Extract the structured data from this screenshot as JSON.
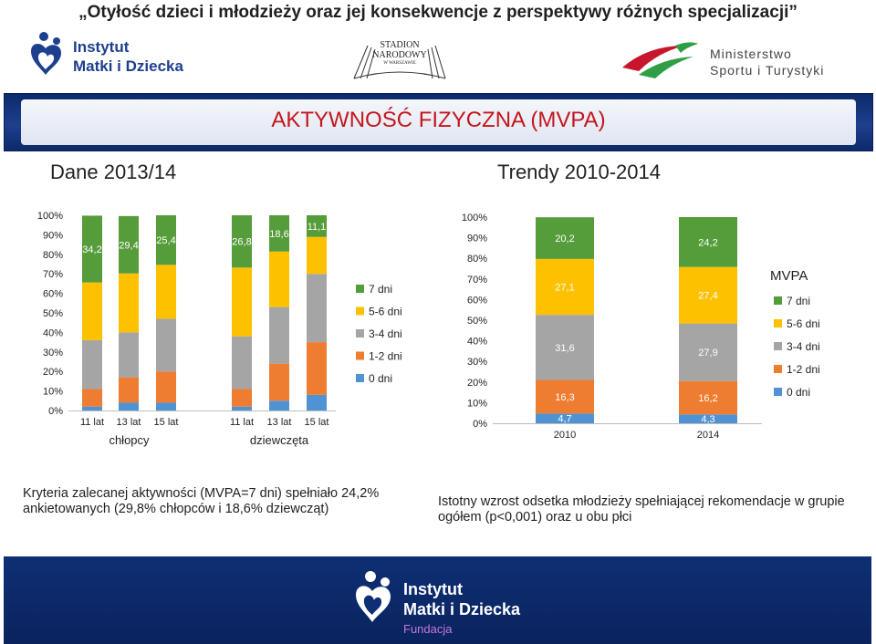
{
  "header": {
    "title": "„Otyłość dzieci i młodzieży oraz jej konsekwencje z perspektywy różnych specjalizacji”",
    "logo_imid": {
      "line1": "Instytut",
      "line2": "Matki i Dziecka"
    },
    "logo_stadion": {
      "line1": "STADION",
      "line2": "NARODOWY",
      "line3": "W WARSZAWIE"
    },
    "logo_ministry": {
      "line1": "Ministerstwo",
      "line2": "Sportu i Turystyki"
    }
  },
  "banner": {
    "text": "AKTYWNOŚĆ FIZYCZNA (MVPA)"
  },
  "subtitles": {
    "left": "Dane 2013/14",
    "right": "Trendy 2010-2014"
  },
  "colors": {
    "0 dni": "#4f93d3",
    "1-2 dni": "#ee7d31",
    "3-4 dni": "#a5a5a5",
    "5-6 dni": "#fec100",
    "7 dni": "#559c3a",
    "banner": "#c4161c",
    "footer": "#0e2f75"
  },
  "chart_data": [
    {
      "type": "bar",
      "stacked": true,
      "categories": [
        "11 lat",
        "13 lat",
        "15 lat",
        "11 lat",
        "13 lat",
        "15 lat"
      ],
      "groups": [
        {
          "label": "chłopcy",
          "categories": [
            0,
            1,
            2
          ]
        },
        {
          "label": "dziewczęta",
          "categories": [
            3,
            4,
            5
          ]
        }
      ],
      "ylim": [
        0,
        100
      ],
      "yticks": [
        "0%",
        "10%",
        "20%",
        "30%",
        "40%",
        "50%",
        "60%",
        "70%",
        "80%",
        "90%",
        "100%"
      ],
      "legend_position": "right",
      "series": [
        {
          "name": "0 dni",
          "values": [
            2,
            4,
            4,
            2,
            5,
            8
          ]
        },
        {
          "name": "1-2 dni",
          "values": [
            9,
            13,
            16,
            9,
            19,
            27
          ]
        },
        {
          "name": "3-4 dni",
          "values": [
            25,
            23,
            27,
            27,
            29,
            35
          ]
        },
        {
          "name": "5-6 dni",
          "values": [
            29.6,
            30.2,
            27.6,
            35.2,
            28.4,
            18.9
          ]
        },
        {
          "name": "7 dni",
          "values": [
            34.2,
            29.4,
            25.4,
            26.8,
            18.6,
            11.1
          ]
        }
      ],
      "data_labels": {
        "7 dni": [
          "34,2",
          "29,4",
          "25,4",
          "26,8",
          "18,6",
          "11,1"
        ]
      }
    },
    {
      "type": "bar",
      "stacked": true,
      "title": "MVPA",
      "categories": [
        "2010",
        "2014"
      ],
      "ylim": [
        0,
        100
      ],
      "yticks": [
        "0%",
        "10%",
        "20%",
        "30%",
        "40%",
        "50%",
        "60%",
        "70%",
        "80%",
        "90%",
        "100%"
      ],
      "legend_position": "right",
      "series": [
        {
          "name": "0 dni",
          "values": [
            4.7,
            4.3
          ]
        },
        {
          "name": "1-2 dni",
          "values": [
            16.3,
            16.2
          ]
        },
        {
          "name": "3-4 dni",
          "values": [
            31.6,
            27.9
          ]
        },
        {
          "name": "5-6 dni",
          "values": [
            27.1,
            27.4
          ]
        },
        {
          "name": "7 dni",
          "values": [
            20.2,
            24.2
          ]
        }
      ],
      "data_labels": {
        "0 dni": [
          "4,7",
          "4,3"
        ],
        "1-2 dni": [
          "16,3",
          "16,2"
        ],
        "3-4 dni": [
          "31,6",
          "27,9"
        ],
        "5-6 dni": [
          "27,1",
          "27,4"
        ],
        "7 dni": [
          "20,2",
          "24,2"
        ]
      }
    }
  ],
  "notes": {
    "left": "Kryteria zalecanej aktywności (MVPA=7 dni) spełniało 24,2% ankietowanych (29,8% chłopców i  18,6% dziewcząt)",
    "right": "Istotny wzrost odsetka młodzieży spełniającej rekomendacje w grupie ogółem (p<0,001) oraz u obu płci"
  },
  "footer": {
    "line1": "Instytut",
    "line2": "Matki i Dziecka",
    "line3": "Fundacja"
  }
}
